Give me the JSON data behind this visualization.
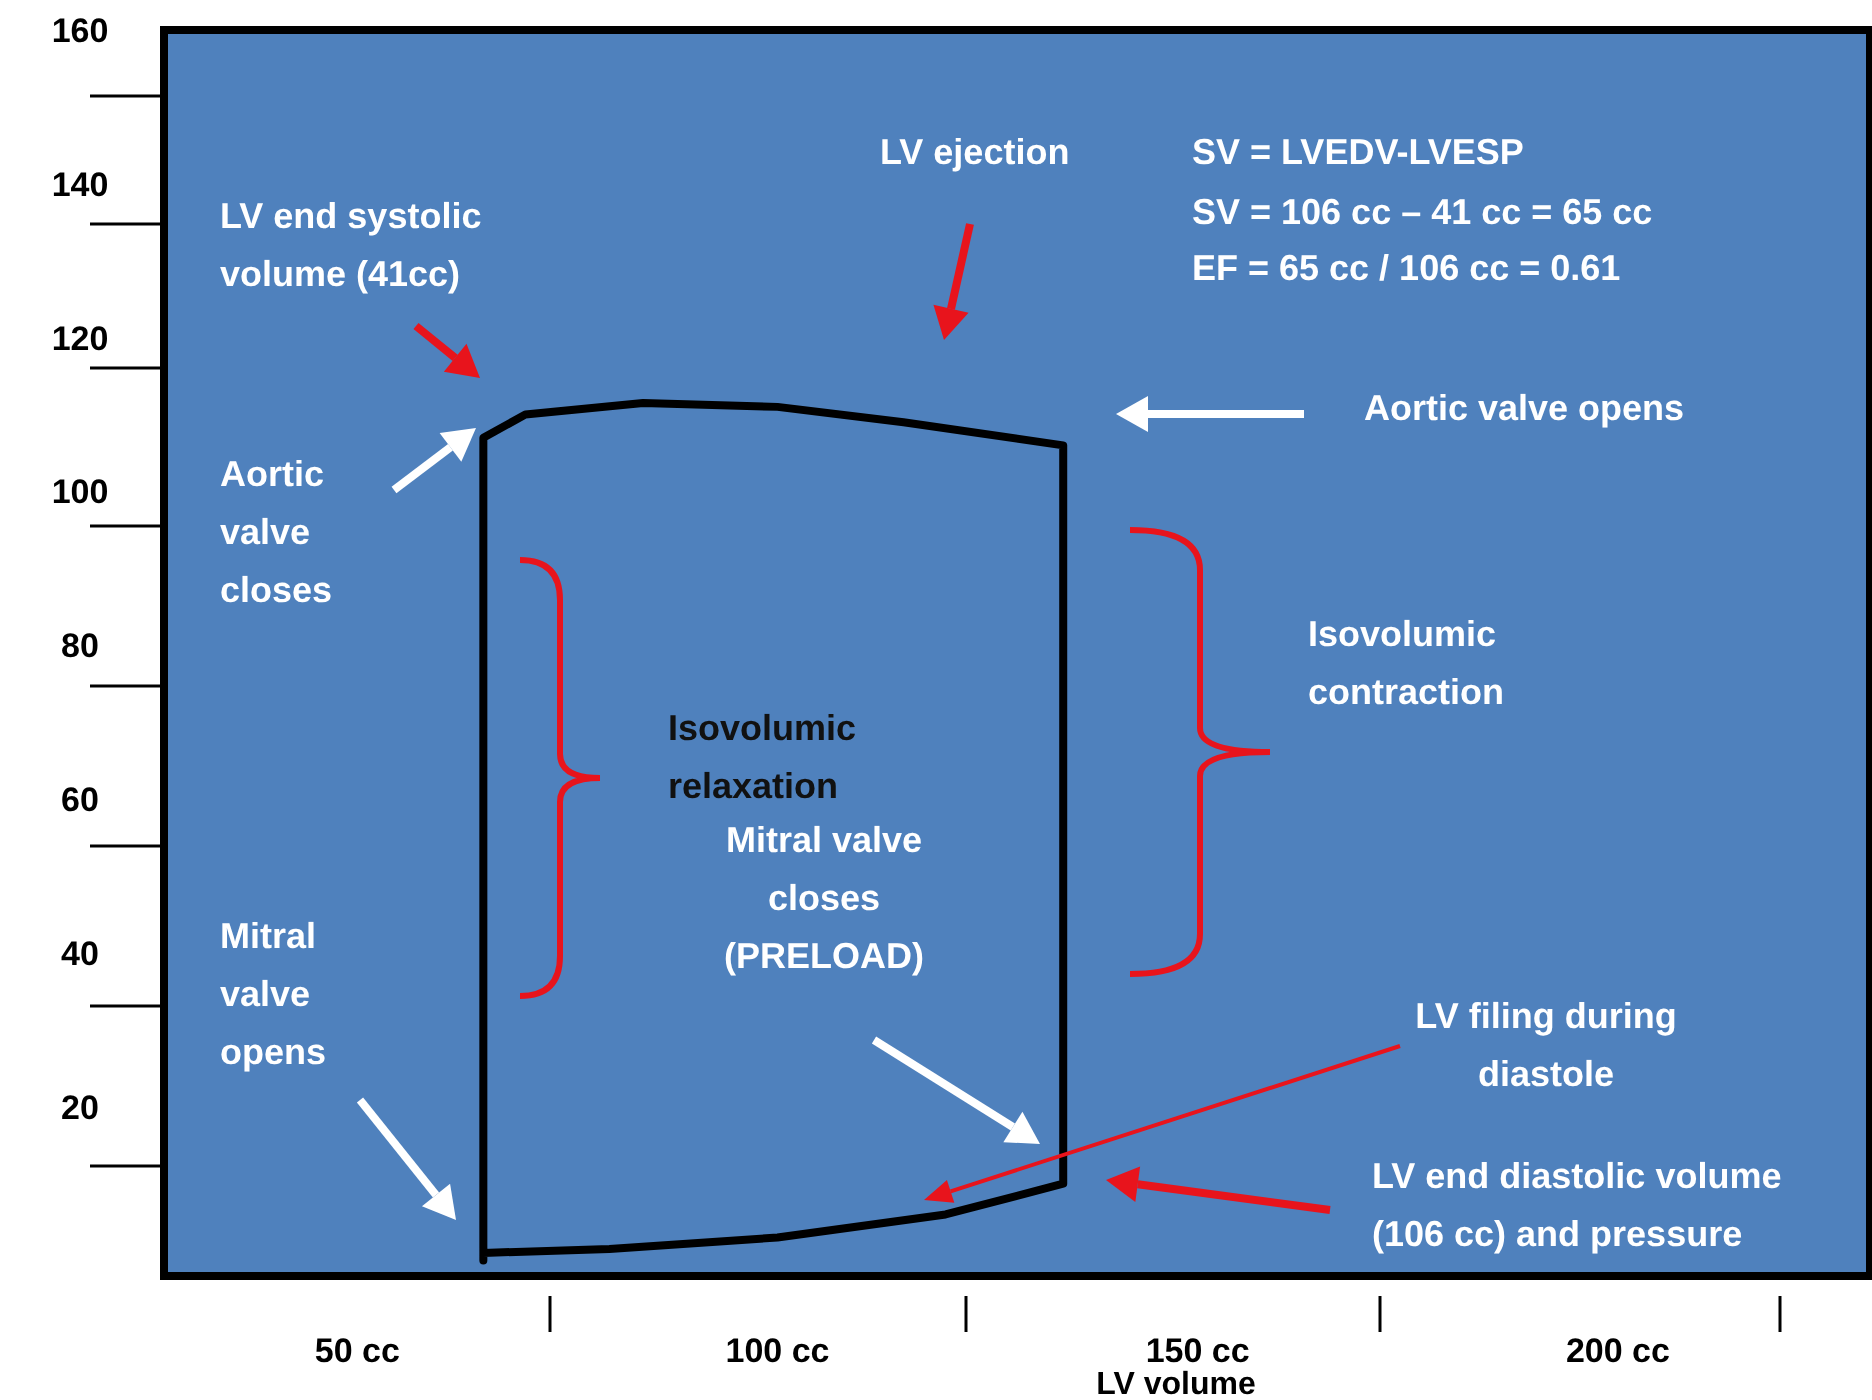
{
  "chart_data": {
    "type": "line",
    "xlabel": "LV volume",
    "xlim": [
      27,
      230
    ],
    "xticks": [
      {
        "value": 50,
        "label": "50 cc"
      },
      {
        "value": 100,
        "label": "100 cc"
      },
      {
        "value": 150,
        "label": "150 cc"
      },
      {
        "value": 200,
        "label": "200 cc"
      }
    ],
    "ylim": [
      -2,
      160
    ],
    "yticks": [
      20,
      40,
      60,
      80,
      100,
      120,
      140,
      160
    ],
    "grid": false,
    "series": [
      {
        "color": "#000000",
        "x": [
          65,
          65,
          70,
          84,
          100,
          115,
          134,
          134,
          120,
          100,
          80,
          65
        ],
        "values": [
          0,
          107,
          110,
          111.5,
          111,
          109,
          106,
          10,
          6,
          3,
          1.5,
          1
        ]
      }
    ],
    "annotations": [
      "LV ejection",
      "SV = LVEDV-LVESP",
      "SV = 106 cc – 41 cc = 65 cc",
      "EF = 65 cc / 106 cc = 0.61",
      "LV end systolic volume (41cc)",
      "Aortic valve opens",
      "Aortic valve closes",
      "Isovolumic contraction",
      "Isovolumic relaxation",
      "Mitral valve closes (PRELOAD)",
      "Mitral valve opens",
      "LV filing during diastole",
      "LV end diastolic volume (106 cc) and pressure"
    ]
  }
}
